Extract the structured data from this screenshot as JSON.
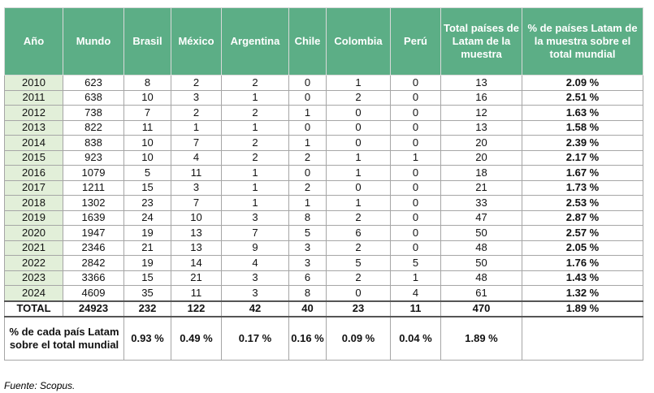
{
  "table": {
    "header": [
      "Año",
      "Mundo",
      "Brasil",
      "México",
      "Argentina",
      "Chile",
      "Colombia",
      "Perú",
      "Total países de Latam de la muestra",
      "% de países Latam de la muestra sobre el total mundial"
    ],
    "rows": [
      [
        2010,
        623,
        8,
        2,
        2,
        0,
        1,
        0,
        13,
        "2.09 %"
      ],
      [
        2011,
        638,
        10,
        3,
        1,
        0,
        2,
        0,
        16,
        "2.51 %"
      ],
      [
        2012,
        738,
        7,
        2,
        2,
        1,
        0,
        0,
        12,
        "1.63 %"
      ],
      [
        2013,
        822,
        11,
        1,
        1,
        0,
        0,
        0,
        13,
        "1.58 %"
      ],
      [
        2014,
        838,
        10,
        7,
        2,
        1,
        0,
        0,
        20,
        "2.39 %"
      ],
      [
        2015,
        923,
        10,
        4,
        2,
        2,
        1,
        1,
        20,
        "2.17 %"
      ],
      [
        2016,
        1079,
        5,
        11,
        1,
        0,
        1,
        0,
        18,
        "1.67 %"
      ],
      [
        2017,
        1211,
        15,
        3,
        1,
        2,
        0,
        0,
        21,
        "1.73 %"
      ],
      [
        2018,
        1302,
        23,
        7,
        1,
        1,
        1,
        0,
        33,
        "2.53 %"
      ],
      [
        2019,
        1639,
        24,
        10,
        3,
        8,
        2,
        0,
        47,
        "2.87 %"
      ],
      [
        2020,
        1947,
        19,
        13,
        7,
        5,
        6,
        0,
        50,
        "2.57 %"
      ],
      [
        2021,
        2346,
        21,
        13,
        9,
        3,
        2,
        0,
        48,
        "2.05 %"
      ],
      [
        2022,
        2842,
        19,
        14,
        4,
        3,
        5,
        5,
        50,
        "1.76 %"
      ],
      [
        2023,
        3366,
        15,
        21,
        3,
        6,
        2,
        1,
        48,
        "1.43 %"
      ],
      [
        2024,
        4609,
        35,
        11,
        3,
        8,
        0,
        4,
        61,
        "1.32 %"
      ]
    ],
    "total_row": [
      "TOTAL",
      24923,
      232,
      122,
      42,
      40,
      23,
      11,
      470,
      "1.89 %"
    ],
    "share_row": {
      "label": "% de cada país Latam sobre el total mundial",
      "values": [
        "0.93 %",
        "0.49 %",
        "0.17 %",
        "0.16 %",
        "0.09 %",
        "0.04 %",
        "1.89 %"
      ]
    }
  },
  "source": "Fuente: Scopus."
}
